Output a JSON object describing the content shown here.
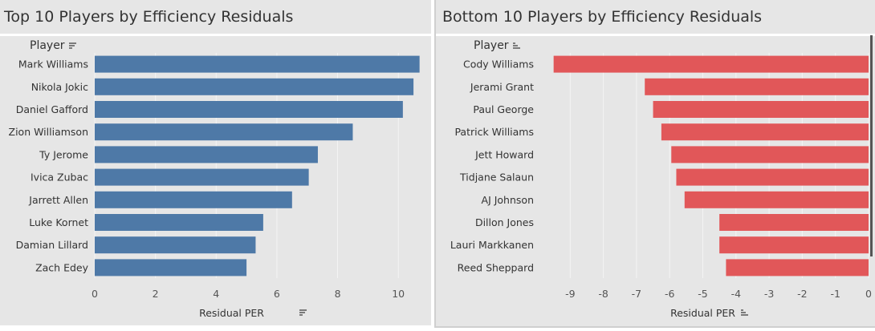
{
  "left_panel": {
    "title": "Top 10 Players by Efficiency Residuals",
    "row_header": "Player",
    "axis_title": "Residual PER"
  },
  "right_panel": {
    "title": "Bottom 10 Players by Efficiency Residuals",
    "row_header": "Player",
    "axis_title": "Residual PER"
  },
  "colors": {
    "top_bar": "#4e79a7",
    "bottom_bar": "#e15759",
    "background": "#e6e6e6"
  },
  "chart_data": [
    {
      "type": "bar",
      "orientation": "horizontal",
      "title": "Top 10 Players by Efficiency Residuals",
      "ylabel": "Player",
      "xlabel": "Residual PER",
      "categories": [
        "Mark Williams",
        "Nikola Jokic",
        "Daniel Gafford",
        "Zion Williamson",
        "Ty Jerome",
        "Ivica Zubac",
        "Jarrett Allen",
        "Luke Kornet",
        "Damian Lillard",
        "Zach Edey"
      ],
      "values": [
        10.7,
        10.5,
        10.15,
        8.5,
        7.35,
        7.05,
        6.5,
        5.55,
        5.3,
        5.0
      ],
      "xlim": [
        0,
        11
      ],
      "xticks": [
        0,
        2,
        4,
        6,
        8,
        10
      ],
      "grid": true,
      "color": "#4e79a7"
    },
    {
      "type": "bar",
      "orientation": "horizontal",
      "title": "Bottom 10 Players by Efficiency Residuals",
      "ylabel": "Player",
      "xlabel": "Residual PER",
      "categories": [
        "Cody Williams",
        "Jerami Grant",
        "Paul George",
        "Patrick Williams",
        "Jett Howard",
        "Tidjane Salaun",
        "AJ Johnson",
        "Dillon Jones",
        "Lauri Markkanen",
        "Reed Sheppard"
      ],
      "values": [
        -9.5,
        -6.75,
        -6.5,
        -6.25,
        -5.95,
        -5.8,
        -5.55,
        -4.5,
        -4.5,
        -4.3
      ],
      "xlim": [
        -10,
        0
      ],
      "xticks": [
        -9,
        -8,
        -7,
        -6,
        -5,
        -4,
        -3,
        -2,
        -1,
        0
      ],
      "grid": true,
      "color": "#e15759"
    }
  ]
}
